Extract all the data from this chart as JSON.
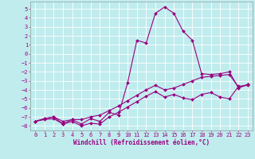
{
  "xlabel": "Windchill (Refroidissement éolien,°C)",
  "xlim": [
    -0.5,
    23.5
  ],
  "ylim": [
    -8.5,
    5.8
  ],
  "yticks": [
    5,
    4,
    3,
    2,
    1,
    0,
    -1,
    -2,
    -3,
    -4,
    -5,
    -6,
    -7,
    -8
  ],
  "xticks": [
    0,
    1,
    2,
    3,
    4,
    5,
    6,
    7,
    8,
    9,
    10,
    11,
    12,
    13,
    14,
    15,
    16,
    17,
    18,
    19,
    20,
    21,
    22,
    23
  ],
  "bg_color": "#c0ecee",
  "grid_color": "#ffffff",
  "line_color": "#990080",
  "series1_x": [
    0,
    1,
    2,
    3,
    4,
    5,
    6,
    7,
    8,
    9,
    10,
    11,
    12,
    13,
    14,
    15,
    16,
    17,
    18,
    19,
    20,
    21,
    22,
    23
  ],
  "series1_y": [
    -7.5,
    -7.3,
    -7.2,
    -7.8,
    -7.5,
    -8.0,
    -7.7,
    -7.8,
    -7.0,
    -6.5,
    -5.9,
    -5.3,
    -4.7,
    -4.2,
    -4.8,
    -4.5,
    -4.9,
    -5.1,
    -4.5,
    -4.3,
    -4.8,
    -5.0,
    -3.6,
    -3.5
  ],
  "series2_x": [
    0,
    1,
    2,
    3,
    4,
    5,
    6,
    7,
    8,
    9,
    10,
    11,
    12,
    13,
    14,
    15,
    16,
    17,
    18,
    19,
    20,
    21,
    22,
    23
  ],
  "series2_y": [
    -7.5,
    -7.2,
    -7.0,
    -7.5,
    -7.3,
    -7.3,
    -7.0,
    -6.8,
    -6.3,
    -5.8,
    -5.2,
    -4.6,
    -4.0,
    -3.5,
    -4.0,
    -3.8,
    -3.4,
    -3.0,
    -2.6,
    -2.5,
    -2.4,
    -2.3,
    -3.7,
    -3.4
  ],
  "series3_x": [
    0,
    1,
    2,
    3,
    4,
    5,
    6,
    7,
    8,
    9,
    10,
    11,
    12,
    13,
    14,
    15,
    16,
    17,
    18,
    19,
    20,
    21,
    22,
    23
  ],
  "series3_y": [
    -7.5,
    -7.2,
    -7.0,
    -7.8,
    -7.3,
    -7.8,
    -7.2,
    -7.5,
    -6.5,
    -6.8,
    -3.2,
    1.5,
    1.2,
    4.5,
    5.2,
    4.5,
    2.5,
    1.5,
    -2.2,
    -2.3,
    -2.2,
    -2.0,
    -3.8,
    -3.4
  ]
}
